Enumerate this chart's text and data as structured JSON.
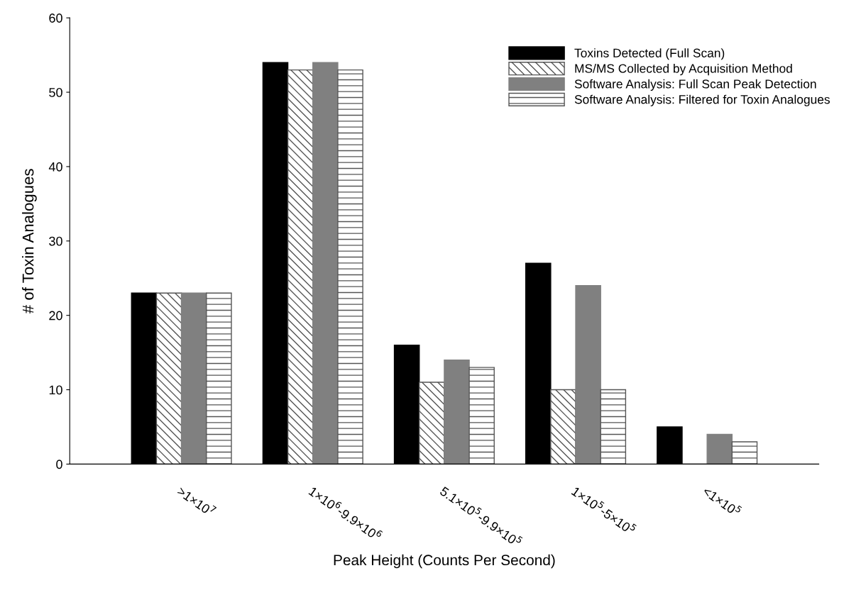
{
  "chart_data": {
    "type": "bar",
    "xlabel": "Peak Height (Counts Per Second)",
    "ylabel": "# of Toxin Analogues",
    "categories": [
      ">1×10$^{7}$",
      "1×10$^{6}$-9.9×10$^{6}$",
      "5.1×10$^{5}$-9.9×10$^{5}$",
      "1×10$^{5}$-5×10$^{5}$",
      "<1×10$^{5}$"
    ],
    "series": [
      {
        "name": "Toxins Detected (Full Scan)",
        "color": "#000000",
        "values": [
          23,
          54,
          16,
          27,
          5
        ]
      },
      {
        "name": "MS/MS Collected by Acquisition Method",
        "color": "#555555",
        "values": [
          23,
          53,
          11,
          10,
          0
        ]
      },
      {
        "name": "Software Analysis: Full Scan Peak Detection",
        "color": "#808080",
        "values": [
          23,
          54,
          14,
          24,
          4
        ]
      },
      {
        "name": "Software Analysis: Filtered for Toxin Analogues",
        "color": "#555555",
        "values": [
          23,
          53,
          13,
          10,
          3
        ]
      }
    ],
    "ylim": [
      0,
      60
    ],
    "yticks": [
      0,
      10,
      20,
      30,
      40,
      50,
      60
    ],
    "grid": false,
    "legend": "top right"
  }
}
